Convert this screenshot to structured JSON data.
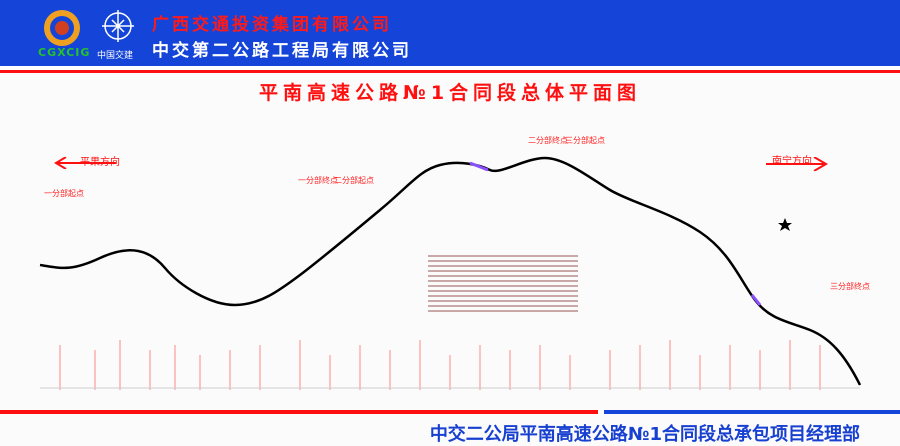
{
  "header": {
    "company1": "广西交通投资集团有限公司",
    "company2": "中交第二公路工程局有限公司",
    "logo1_text": "CGXCIG",
    "logo2_text": "中国交建"
  },
  "title": "平南高速公路№1合同段总体平面图",
  "map": {
    "dir_left": "平果方向",
    "dir_right": "南宁方向",
    "labels": {
      "start": "一分部起点",
      "seg1_end": "一分部终点",
      "seg2_start": "二分部起点",
      "seg2_end": "二分部终点",
      "seg3_start": "三分部起点",
      "seg3_end": "三分部终点"
    },
    "colors": {
      "route": "#000000",
      "annotation": "#ff2020",
      "segment": "#8a4fff"
    }
  },
  "footer": "中交二公局平南高速公路№1合同段总承包项目经理部"
}
